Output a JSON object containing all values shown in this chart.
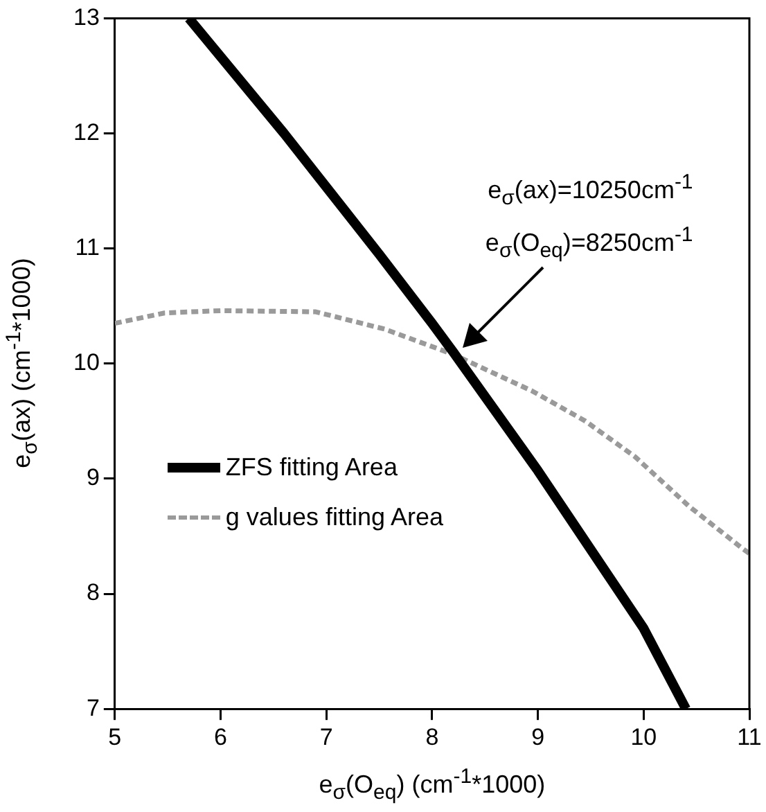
{
  "chart_data": {
    "type": "line",
    "xlabel": "e$_{σ}$(O$_{eq}$)  (cm$^{-1}$*1000)",
    "ylabel": "e$_{σ}$(ax)  (cm$^{-1}$*1000)",
    "xlim": [
      5,
      11
    ],
    "xticks": [
      5,
      6,
      7,
      8,
      9,
      10,
      11
    ],
    "ylim": [
      7,
      13
    ],
    "yticks": [
      7,
      8,
      9,
      10,
      11,
      12,
      13
    ],
    "grid": false,
    "legend": "left",
    "marker": "none",
    "series": [
      {
        "name": "ZFS fitting Area",
        "color": "#000000",
        "line_style": "solid",
        "x": [
          5.7,
          6.6,
          7.5,
          8.0,
          8.2,
          9.0,
          10.0,
          10.4
        ],
        "values": [
          13,
          12,
          10.95,
          10.35,
          10.1,
          9.07,
          7.7,
          7.0
        ]
      },
      {
        "name": "g values fitting Area",
        "color": "#9a9a9a",
        "line_style": "dashed",
        "x": [
          5,
          5.47,
          6.0,
          6.9,
          7.55,
          8.2,
          8.95,
          9.45,
          9.92,
          10.43,
          10.94,
          11
        ],
        "values": [
          10.35,
          10.44,
          10.46,
          10.45,
          10.3,
          10.08,
          9.76,
          9.5,
          9.19,
          8.76,
          8.39,
          8.35
        ]
      }
    ],
    "annotations": [
      "e$_{σ}$(ax)=10250cm$^{-1}$",
      "e$_{σ}$(O$_{eq}$)=8250cm$^{-1}$"
    ]
  }
}
